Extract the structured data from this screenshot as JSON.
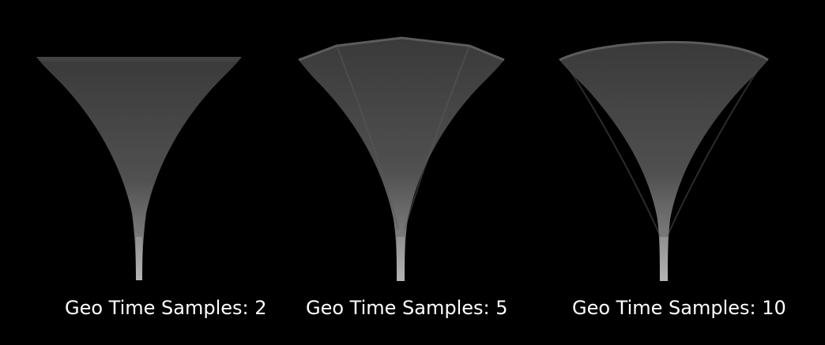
{
  "panels": [
    {
      "caption": "Geo Time Samples: 2",
      "geo_time_samples": 2
    },
    {
      "caption": "Geo Time Samples: 5",
      "geo_time_samples": 5
    },
    {
      "caption": "Geo Time Samples: 10",
      "geo_time_samples": 10
    }
  ],
  "colors": {
    "background": "#000000",
    "caption_text": "#ffffff",
    "shape_fill_top": "#3e3e3e",
    "shape_fill_mid": "#5a5a5a",
    "shape_stem": "#a8a8a8"
  }
}
